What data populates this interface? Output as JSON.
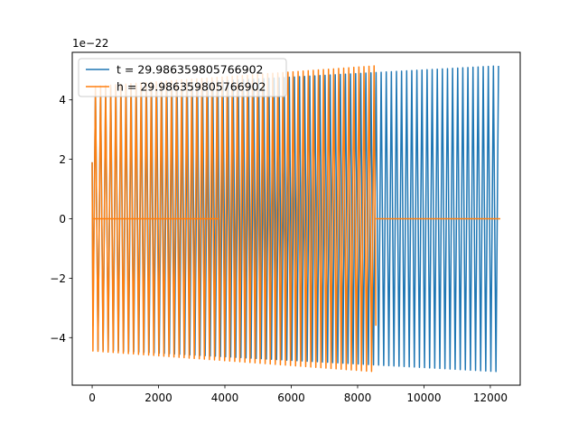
{
  "chart_data": {
    "type": "line",
    "title": "",
    "xlabel": "",
    "ylabel": "",
    "y_offset_label": "1e−22",
    "xlim": [
      -600,
      12900
    ],
    "ylim": [
      -5.6,
      5.6
    ],
    "xticks": [
      0,
      2000,
      4000,
      6000,
      8000,
      10000,
      12000
    ],
    "xtick_labels": [
      "0",
      "2000",
      "4000",
      "6000",
      "8000",
      "10000",
      "12000"
    ],
    "yticks": [
      -4,
      -2,
      0,
      2,
      4
    ],
    "ytick_labels": [
      "−4",
      "−2",
      "0",
      "2",
      "4"
    ],
    "grid": false,
    "legend_position": "upper-left",
    "series": [
      {
        "name": "t = 29.986359805766902",
        "color": "#1f77b4",
        "signal_span": [
          0,
          12300
        ],
        "cycles": 80,
        "amplitude_start": 4.4,
        "amplitude_end": 5.15,
        "initial_value": 1.9,
        "flat_segments": [],
        "first_trough": -3.6
      },
      {
        "name": "h = 29.986359805766902",
        "color": "#ff7f0e",
        "signal_span": [
          0,
          8550
        ],
        "cycles": 56,
        "amplitude_start": 4.45,
        "amplitude_end": 5.15,
        "initial_value": 1.9,
        "last_value": -3.6,
        "flat_segments": [
          [
            30,
            3830,
            0
          ],
          [
            8550,
            12300,
            0
          ]
        ]
      }
    ]
  }
}
